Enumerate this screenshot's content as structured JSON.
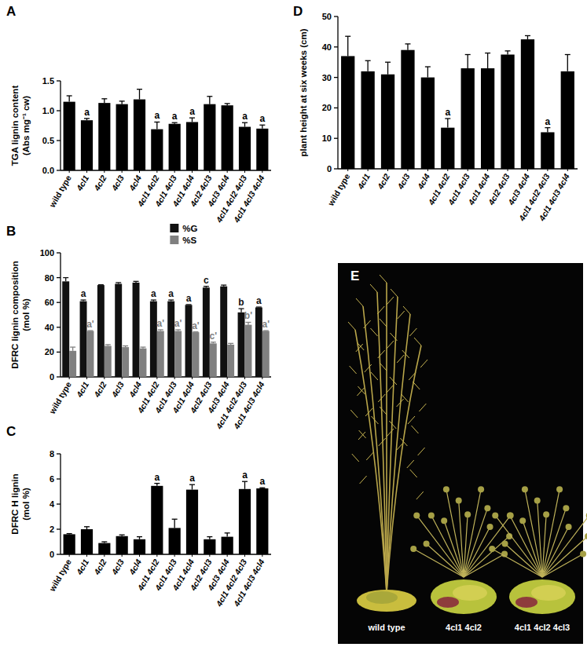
{
  "chart_data": [
    {
      "type": "bar",
      "title": "A",
      "y_label": [
        "TGA lignin content",
        "(Abs mg⁻¹ cw)"
      ],
      "categories": [
        "wild type",
        "4cl1",
        "4cl2",
        "4cl3",
        "4cl4",
        "4cl1 4cl2",
        "4cl1 4cl3",
        "4cl1 4cl4",
        "4cl2 4cl3",
        "4cl3 4cl4",
        "4cl1 4cl2 4cl3",
        "4cl1 4cl3 4cl4"
      ],
      "values": [
        1.15,
        0.84,
        1.13,
        1.11,
        1.19,
        0.69,
        0.78,
        0.81,
        1.11,
        1.09,
        0.73,
        0.7
      ],
      "errors": [
        0.1,
        0.03,
        0.07,
        0.05,
        0.17,
        0.12,
        0.02,
        0.07,
        0.13,
        0.03,
        0.07,
        0.06
      ],
      "letters": [
        null,
        "a",
        null,
        null,
        null,
        "a",
        "a",
        "a",
        null,
        null,
        "a",
        "a"
      ],
      "color": "#000000",
      "ylim": [
        0,
        1.5
      ],
      "yticks": [
        {
          "value": 0,
          "label": "0.0"
        },
        {
          "value": 0.5,
          "label": "0.5"
        },
        {
          "value": 1,
          "label": "1.0"
        },
        {
          "value": 1.5,
          "label": "1.5"
        }
      ]
    },
    {
      "type": "bar",
      "title": "B",
      "y_label": [
        "DFRC lignin composition",
        "(mol %)"
      ],
      "categories": [
        "wild type",
        "4cl1",
        "4cl2",
        "4cl3",
        "4cl4",
        "4cl1 4cl2",
        "4cl1 4cl3",
        "4cl1 4cl4",
        "4cl2 4cl3",
        "4cl3 4cl4",
        "4cl1 4cl2 4cl3",
        "4cl1 4cl3 4cl4"
      ],
      "series": [
        {
          "name": "%G",
          "color": "#111111",
          "values": [
            77,
            61,
            74,
            75,
            76,
            61,
            61,
            58,
            72,
            73,
            52,
            56
          ],
          "errors": [
            3,
            1,
            0.3,
            1,
            1,
            1,
            1,
            0.3,
            1,
            1,
            3,
            0.3
          ],
          "letters": [
            null,
            "a",
            null,
            null,
            null,
            "a",
            "a",
            "a",
            "c",
            null,
            "b",
            "a"
          ]
        },
        {
          "name": "%S",
          "color": "#808080",
          "values": [
            21,
            37,
            25,
            24,
            23,
            37,
            37,
            36,
            27,
            26,
            42,
            37
          ],
          "errors": [
            3,
            0.3,
            1,
            1,
            1,
            1,
            1,
            0.3,
            1,
            1,
            2,
            0.3
          ],
          "letters": [
            null,
            "a'",
            null,
            null,
            null,
            "a'",
            "a'",
            "a'",
            "c'",
            null,
            "b'",
            "a'"
          ]
        }
      ],
      "legend": "top right",
      "ylim": [
        0,
        100
      ],
      "yticks": [
        0,
        20,
        40,
        60,
        80,
        100
      ]
    },
    {
      "type": "bar",
      "title": "C",
      "y_label": [
        "DFRC H lignin",
        "(mol %)"
      ],
      "categories": [
        "wild type",
        "4cl1",
        "4cl2",
        "4cl3",
        "4cl4",
        "4cl1 4cl2",
        "4cl1 4cl3",
        "4cl1 4cl4",
        "4cl2 4cl3",
        "4cl3 4cl4",
        "4cl1 4cl2 4cl3",
        "4cl1 4cl3 4cl4"
      ],
      "values": [
        1.6,
        2.0,
        0.9,
        1.45,
        1.2,
        5.45,
        2.1,
        5.15,
        1.2,
        1.4,
        5.2,
        5.25
      ],
      "errors": [
        0.05,
        0.2,
        0.1,
        0.1,
        0.2,
        0.2,
        0.7,
        0.4,
        0.2,
        0.3,
        0.6,
        0.05
      ],
      "letters": [
        null,
        null,
        null,
        null,
        null,
        "a",
        null,
        "a",
        null,
        null,
        "a",
        "a"
      ],
      "color": "#000000",
      "ylim": [
        0,
        8
      ],
      "yticks": [
        0,
        2,
        4,
        6,
        8
      ]
    },
    {
      "type": "bar",
      "title": "D",
      "y_label": [
        "plant height at six weeks (cm)"
      ],
      "categories": [
        "wild type",
        "4cl1",
        "4cl2",
        "4cl3",
        "4cl4",
        "4cl1 4cl2",
        "4cl1 4cl3",
        "4cl1 4cl4",
        "4cl2 4cl3",
        "4cl3 4cl4",
        "4cl1 4cl2 4cl3",
        "4cl1 4cl3 4cl4"
      ],
      "values": [
        37,
        32,
        31,
        39,
        30,
        13.5,
        33,
        33,
        37.5,
        42.5,
        12,
        32
      ],
      "errors": [
        6.5,
        3.5,
        4,
        2,
        3.5,
        3,
        4.5,
        5,
        1.2,
        1.2,
        1.5,
        5.5
      ],
      "letters": [
        null,
        null,
        null,
        null,
        null,
        "a",
        null,
        null,
        null,
        null,
        "a",
        null
      ],
      "color": "#000000",
      "ylim": [
        0,
        50
      ],
      "yticks": [
        0,
        10,
        20,
        30,
        40,
        50
      ]
    },
    {
      "type": "image",
      "title": "E",
      "labels": [
        "wild type",
        "4cl1 4cl2",
        "4cl1 4cl2 4cl3"
      ]
    }
  ]
}
